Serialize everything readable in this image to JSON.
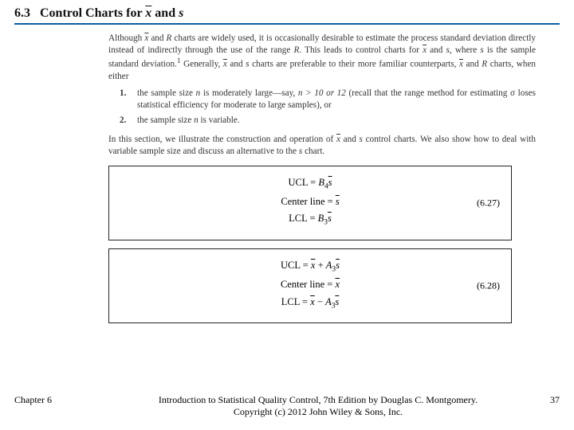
{
  "section": {
    "number": "6.3",
    "title_prefix": "Control Charts for ",
    "title_var1": "x",
    "title_conj": " and ",
    "title_var2": "s"
  },
  "paragraphs": {
    "p1a": "Although ",
    "p1_x": "x",
    "p1b": " and ",
    "p1_R": "R",
    "p1c": " charts are widely used, it is occasionally desirable to estimate the process standard deviation directly instead of indirectly through the use of the range ",
    "p1d": ". This leads to control charts for ",
    "p1e": ", where ",
    "p1_s": "s",
    "p1f": " is the sample standard deviation.",
    "p1g": " Generally, ",
    "p1h": " charts are preferable to their more familiar counterparts, ",
    "p1i": " charts, when either",
    "sup1": "1"
  },
  "list": {
    "n1": "1.",
    "i1a": "the sample size ",
    "i1_n": "n",
    "i1b": " is moderately large—say, ",
    "i1c": "n > 10 or 12",
    "i1d": " (recall that the range method for estimating σ loses statistical efficiency for moderate to large samples), or",
    "n2": "2.",
    "i2a": "the sample size ",
    "i2b": " is variable."
  },
  "p2a": "In this section, we illustrate the construction and operation of ",
  "p2b": " control charts. We also show how to deal with variable sample size and discuss an alternative to the ",
  "p2c": " chart.",
  "eq1": {
    "ucl_l": "UCL = ",
    "ucl_B": "B",
    "ucl_sub": "4",
    "ucl_s": "s",
    "cl_l": "Center line = ",
    "cl_s": "s",
    "lcl_l": "LCL = ",
    "lcl_B": "B",
    "lcl_sub": "3",
    "lcl_s": "s",
    "num": "(6.27)"
  },
  "eq2": {
    "ucl_l": "UCL = ",
    "ucl_x": "x",
    "ucl_plus": " + ",
    "ucl_A": "A",
    "ucl_sub": "3",
    "ucl_s": "s",
    "cl_l": "Center line = ",
    "cl_x": "x",
    "lcl_l": "LCL = ",
    "lcl_x": "x",
    "lcl_minus": " − ",
    "lcl_A": "A",
    "lcl_sub": "3",
    "lcl_s": "s",
    "num": "(6.28)"
  },
  "footer": {
    "chapter": "Chapter 6",
    "line1": "Introduction to Statistical Quality Control, 7th Edition by Douglas C. Montgomery.",
    "line2": "Copyright (c) 2012  John Wiley & Sons, Inc.",
    "page": "37"
  }
}
